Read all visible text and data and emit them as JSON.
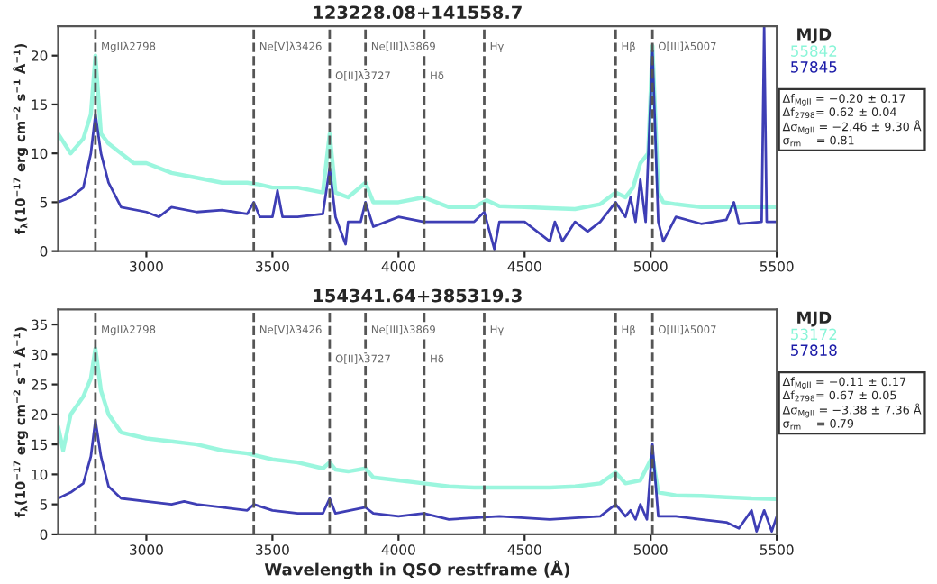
{
  "chart_data": [
    {
      "type": "line",
      "title": "123228.08+141558.7",
      "ylabel": "f$_{λ}$(10$^{−17}$ erg cm$^{−2}$ s$^{−1}$ Å$^{−1}$)",
      "legend_title": "MJD",
      "legend": "right",
      "xlim": [
        2650,
        5500
      ],
      "xticks": [
        3000,
        3500,
        4000,
        4500,
        5000,
        5500
      ],
      "ylim": [
        0,
        23
      ],
      "yticks": [
        0,
        5,
        10,
        15,
        20
      ],
      "series": [
        {
          "name": "55842",
          "color": "#8af5d8",
          "x": [
            2650,
            2700,
            2750,
            2780,
            2798,
            2820,
            2850,
            2900,
            2950,
            3000,
            3100,
            3200,
            3300,
            3400,
            3450,
            3500,
            3600,
            3700,
            3727,
            3750,
            3800,
            3869,
            3900,
            4000,
            4100,
            4200,
            4300,
            4350,
            4400,
            4500,
            4600,
            4700,
            4800,
            4861,
            4900,
            4930,
            4959,
            4990,
            5007,
            5030,
            5050,
            5100,
            5200,
            5300,
            5400,
            5500
          ],
          "values": [
            12,
            10,
            11.5,
            14,
            20,
            12,
            11,
            10,
            9,
            9,
            8,
            7.5,
            7,
            7,
            6.8,
            6.5,
            6.5,
            6,
            12,
            6,
            5.5,
            7,
            5,
            5,
            5.5,
            4.5,
            4.5,
            5.2,
            4.6,
            4.5,
            4.4,
            4.3,
            4.8,
            6,
            5.5,
            6.5,
            9,
            10,
            21,
            6,
            5,
            4.8,
            4.5,
            4.5,
            4.5,
            4.5
          ]
        },
        {
          "name": "57845",
          "color": "#1c1ca8",
          "x": [
            2650,
            2700,
            2750,
            2780,
            2798,
            2820,
            2850,
            2900,
            3000,
            3050,
            3100,
            3200,
            3300,
            3400,
            3426,
            3450,
            3500,
            3520,
            3540,
            3600,
            3700,
            3727,
            3750,
            3790,
            3800,
            3850,
            3869,
            3900,
            3950,
            4000,
            4100,
            4200,
            4300,
            4340,
            4380,
            4400,
            4500,
            4600,
            4620,
            4650,
            4700,
            4750,
            4800,
            4861,
            4900,
            4920,
            4940,
            4959,
            4980,
            5007,
            5030,
            5050,
            5100,
            5200,
            5300,
            5330,
            5350,
            5440,
            5450,
            5460,
            5500
          ],
          "values": [
            5,
            5.5,
            6.5,
            10,
            14,
            10,
            7,
            4.5,
            4,
            3.5,
            4.5,
            4,
            4.2,
            3.8,
            5,
            3.5,
            3.5,
            6.2,
            3.5,
            3.5,
            3.8,
            8.5,
            3.5,
            0.7,
            3,
            3,
            5,
            2.5,
            3,
            3.5,
            3,
            3,
            3,
            4,
            0.2,
            3,
            3,
            1,
            3,
            1,
            3,
            2,
            3,
            5,
            3.5,
            5.5,
            3,
            7.3,
            3,
            20.5,
            3,
            1,
            3.5,
            2.8,
            3.2,
            5,
            2.8,
            3,
            22.9,
            3,
            3
          ]
        }
      ],
      "ref_lines": [
        {
          "axis": "x",
          "value": 2798,
          "label": "MgIIλ2798"
        },
        {
          "axis": "x",
          "value": 3426,
          "label": "Ne[V]λ3426"
        },
        {
          "axis": "x",
          "value": 3727,
          "label": "O[II]λ3727"
        },
        {
          "axis": "x",
          "value": 3869,
          "label": "Ne[III]λ3869"
        },
        {
          "axis": "x",
          "value": 4102,
          "label": "Hδ"
        },
        {
          "axis": "x",
          "value": 4340,
          "label": "Hγ"
        },
        {
          "axis": "x",
          "value": 4861,
          "label": "Hβ"
        },
        {
          "axis": "x",
          "value": 5007,
          "label": "O[III]λ5007"
        }
      ],
      "annotations": [
        "Δf$_{MgII}$ = −0.20 ± 0.17",
        "Δf$_{2798}$= 0.62 ± 0.04",
        "Δσ$_{MgII}$ = −2.46 ± 9.30 Å",
        "σ$_{rm}$    = 0.81"
      ]
    },
    {
      "type": "line",
      "title": "154341.64+385319.3",
      "xlabel": "Wavelength in QSO restframe (Å)",
      "ylabel": "f$_{λ}$(10$^{−17}$ erg cm$^{−2}$ s$^{−1}$ Å$^{−1}$)",
      "legend_title": "MJD",
      "legend": "right",
      "xlim": [
        2650,
        5500
      ],
      "xticks": [
        3000,
        3500,
        4000,
        4500,
        5000,
        5500
      ],
      "ylim": [
        0,
        37.5
      ],
      "yticks": [
        0,
        5,
        10,
        15,
        20,
        25,
        30,
        35
      ],
      "series": [
        {
          "name": "53172",
          "color": "#8af5d8",
          "x": [
            2650,
            2670,
            2700,
            2750,
            2780,
            2798,
            2820,
            2850,
            2900,
            3000,
            3100,
            3200,
            3300,
            3400,
            3500,
            3600,
            3700,
            3727,
            3750,
            3800,
            3869,
            3900,
            4000,
            4100,
            4200,
            4300,
            4400,
            4500,
            4600,
            4700,
            4800,
            4861,
            4900,
            4959,
            5007,
            5030,
            5100,
            5200,
            5300,
            5400,
            5500
          ],
          "values": [
            18,
            14,
            20,
            23,
            26,
            31,
            24,
            20,
            17,
            16,
            15.5,
            15,
            14,
            13.5,
            12.5,
            12,
            11,
            12,
            10.8,
            10.5,
            11,
            9.5,
            9,
            8.5,
            8,
            7.8,
            7.8,
            7.8,
            7.8,
            8,
            8.5,
            10.3,
            8.5,
            9,
            13,
            7,
            6.5,
            6.4,
            6.2,
            6,
            5.9
          ]
        },
        {
          "name": "57818",
          "color": "#1c1ca8",
          "x": [
            2650,
            2700,
            2750,
            2780,
            2798,
            2820,
            2850,
            2900,
            3000,
            3100,
            3150,
            3200,
            3300,
            3400,
            3426,
            3500,
            3600,
            3700,
            3727,
            3750,
            3869,
            3900,
            4000,
            4100,
            4200,
            4400,
            4600,
            4800,
            4861,
            4900,
            4920,
            4940,
            4959,
            4985,
            5007,
            5030,
            5100,
            5200,
            5300,
            5350,
            5400,
            5420,
            5450,
            5480,
            5500
          ],
          "values": [
            6,
            7,
            8.5,
            13,
            19,
            13,
            8,
            6,
            5.5,
            5,
            5.5,
            5,
            4.5,
            4,
            5,
            4,
            3.5,
            3.5,
            6,
            3.5,
            4.5,
            3.5,
            3,
            3.5,
            2.5,
            3,
            2.5,
            3,
            5,
            3,
            4,
            2.5,
            5,
            2.5,
            15,
            3,
            3,
            2.5,
            2,
            1,
            4,
            0.5,
            4,
            0.5,
            3
          ]
        }
      ],
      "ref_lines": [
        {
          "axis": "x",
          "value": 2798,
          "label": "MgIIλ2798"
        },
        {
          "axis": "x",
          "value": 3426,
          "label": "Ne[V]λ3426"
        },
        {
          "axis": "x",
          "value": 3727,
          "label": "O[II]λ3727"
        },
        {
          "axis": "x",
          "value": 3869,
          "label": "Ne[III]λ3869"
        },
        {
          "axis": "x",
          "value": 4102,
          "label": "Hδ"
        },
        {
          "axis": "x",
          "value": 4340,
          "label": "Hγ"
        },
        {
          "axis": "x",
          "value": 4861,
          "label": "Hβ"
        },
        {
          "axis": "x",
          "value": 5007,
          "label": "O[III]λ5007"
        }
      ],
      "annotations": [
        "Δf$_{MgII}$ = −0.11 ± 0.17",
        "Δf$_{2798}$= 0.67 ± 0.05",
        "Δσ$_{MgII}$ = −3.38 ± 7.36 Å",
        "σ$_{rm}$    = 0.79"
      ]
    }
  ]
}
